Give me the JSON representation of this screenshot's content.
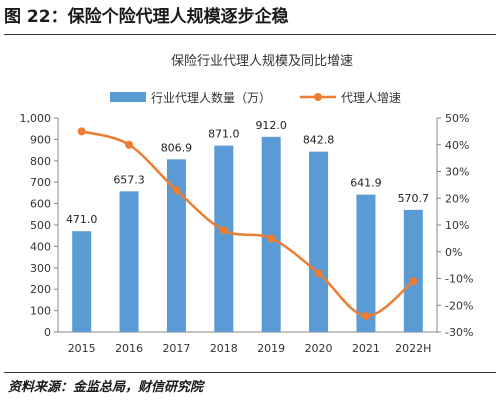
{
  "figure": {
    "caption": "图 22：保险个险代理人规模逐步企稳",
    "source": "资料来源：金监总局，财信研究院"
  },
  "chart_data": {
    "type": "bar+line",
    "title": "保险行业代理人规模及同比增速",
    "categories": [
      "2015",
      "2016",
      "2017",
      "2018",
      "2019",
      "2020",
      "2021",
      "2022H"
    ],
    "series": [
      {
        "name": "行业代理人数量（万）",
        "type": "bar",
        "axis": "left",
        "color": "#5b9bd5",
        "values": [
          471.0,
          657.3,
          806.9,
          871.0,
          912.0,
          842.8,
          641.9,
          570.7
        ],
        "labels": [
          "471.0",
          "657.3",
          "806.9",
          "871.0",
          "912.0",
          "842.8",
          "641.9",
          "570.7"
        ]
      },
      {
        "name": "代理人增速",
        "type": "line",
        "axis": "right",
        "color": "#ed7d31",
        "values": [
          45,
          40,
          23,
          8,
          5,
          -8,
          -24,
          -11
        ]
      }
    ],
    "y_left": {
      "min": 0,
      "max": 1000,
      "step": 100,
      "tick_labels": [
        "0",
        "100",
        "200",
        "300",
        "400",
        "500",
        "600",
        "700",
        "800",
        "900",
        "1,000"
      ]
    },
    "y_right": {
      "min": -30,
      "max": 50,
      "step": 10,
      "tick_labels": [
        "-30%",
        "-20%",
        "-10%",
        "0%",
        "10%",
        "20%",
        "30%",
        "40%",
        "50%"
      ]
    },
    "grid": false,
    "legend_position": "top"
  }
}
